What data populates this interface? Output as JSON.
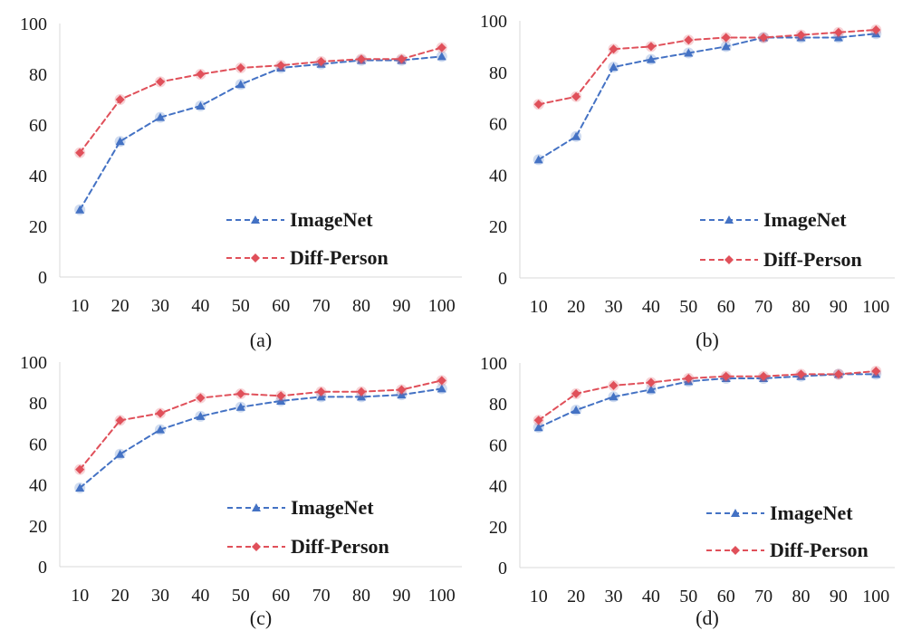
{
  "chart_data": [
    {
      "type": "line",
      "panel_label": "(a)",
      "x": [
        10,
        20,
        30,
        40,
        50,
        60,
        70,
        80,
        90,
        100
      ],
      "ylim": [
        0,
        100
      ],
      "yticks": [
        0,
        20,
        40,
        60,
        80,
        100
      ],
      "legend_position": "bottom-right",
      "grid": false,
      "series": [
        {
          "name": "ImageNet",
          "color": "#4472c4",
          "marker": "triangle",
          "values": [
            26.5,
            53.5,
            63,
            67.5,
            76,
            82.5,
            84,
            85.5,
            85.5,
            87
          ]
        },
        {
          "name": "Diff-Person",
          "color": "#e0505a",
          "marker": "diamond",
          "values": [
            49,
            70,
            77,
            80,
            82.5,
            83.5,
            85,
            86,
            86,
            90.5
          ]
        }
      ]
    },
    {
      "type": "line",
      "panel_label": "(b)",
      "x": [
        10,
        20,
        30,
        40,
        50,
        60,
        70,
        80,
        90,
        100
      ],
      "ylim": [
        0,
        100
      ],
      "yticks": [
        0,
        20,
        40,
        60,
        80,
        100
      ],
      "legend_position": "bottom-right",
      "grid": false,
      "series": [
        {
          "name": "ImageNet",
          "color": "#4472c4",
          "marker": "triangle",
          "values": [
            46,
            55,
            82,
            85,
            87.5,
            90,
            93.5,
            93.5,
            93.5,
            95
          ]
        },
        {
          "name": "Diff-Person",
          "color": "#e0505a",
          "marker": "diamond",
          "values": [
            67.5,
            70.5,
            89,
            90,
            92.5,
            93.5,
            93.5,
            94.5,
            95.5,
            96.5
          ]
        }
      ]
    },
    {
      "type": "line",
      "panel_label": "(c)",
      "x": [
        10,
        20,
        30,
        40,
        50,
        60,
        70,
        80,
        90,
        100
      ],
      "ylim": [
        0,
        100
      ],
      "yticks": [
        0,
        20,
        40,
        60,
        80,
        100
      ],
      "legend_position": "bottom-right",
      "grid": false,
      "series": [
        {
          "name": "ImageNet",
          "color": "#4472c4",
          "marker": "triangle",
          "values": [
            38.5,
            55,
            67,
            73.5,
            78,
            81,
            83,
            83,
            84,
            87
          ]
        },
        {
          "name": "Diff-Person",
          "color": "#e0505a",
          "marker": "diamond",
          "values": [
            47.5,
            71.5,
            75,
            82.5,
            84.5,
            83.5,
            85.5,
            85.5,
            86.5,
            91
          ]
        }
      ]
    },
    {
      "type": "line",
      "panel_label": "(d)",
      "x": [
        10,
        20,
        30,
        40,
        50,
        60,
        70,
        80,
        90,
        100
      ],
      "ylim": [
        0,
        100
      ],
      "yticks": [
        0,
        20,
        40,
        60,
        80,
        100
      ],
      "legend_position": "bottom-right",
      "grid": false,
      "series": [
        {
          "name": "ImageNet",
          "color": "#4472c4",
          "marker": "triangle",
          "values": [
            68.5,
            77,
            83.5,
            87,
            91,
            92.5,
            92.5,
            93.5,
            94.5,
            94.5
          ]
        },
        {
          "name": "Diff-Person",
          "color": "#e0505a",
          "marker": "diamond",
          "values": [
            72,
            85,
            89,
            90.5,
            92.5,
            93.5,
            93.5,
            94.5,
            94.5,
            96
          ]
        }
      ]
    }
  ]
}
